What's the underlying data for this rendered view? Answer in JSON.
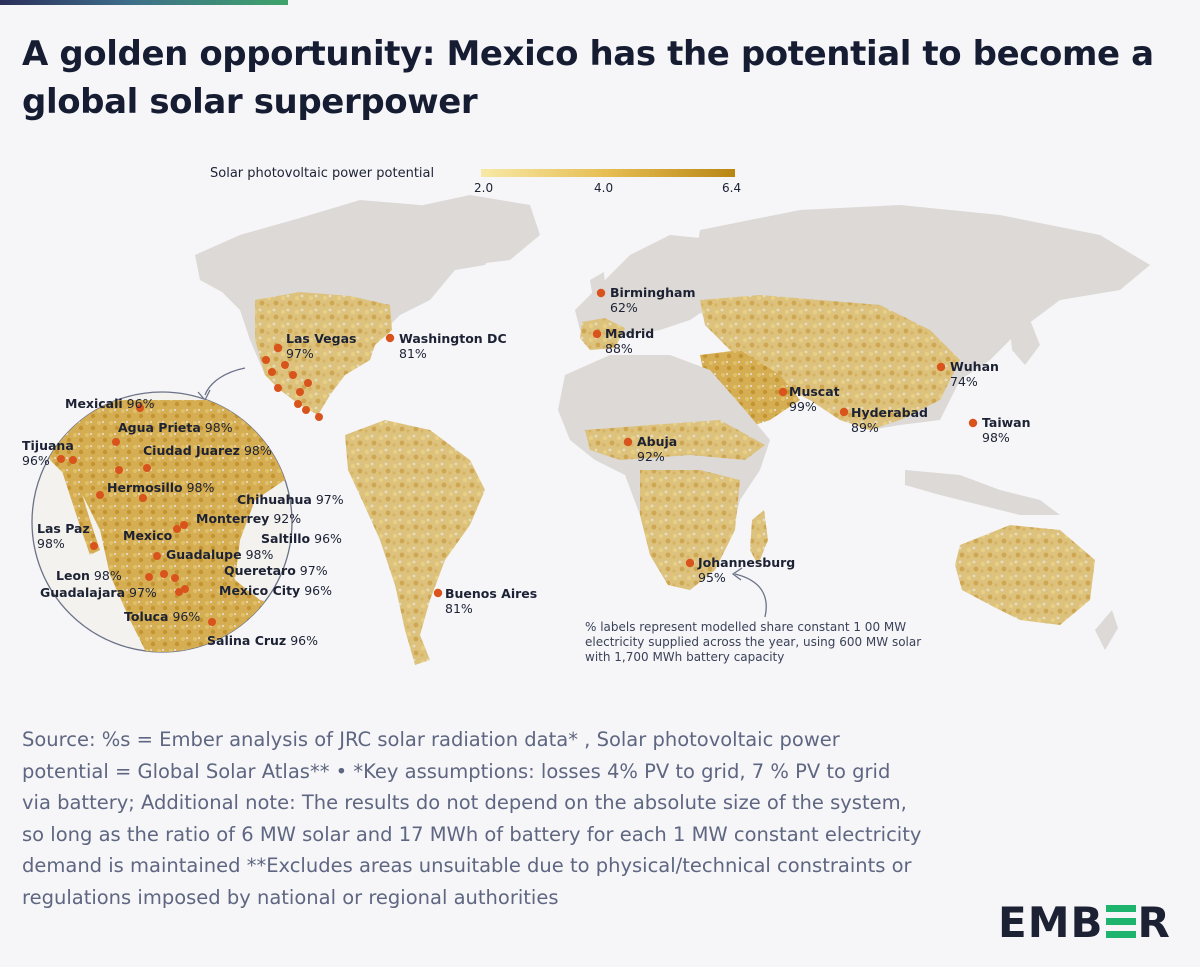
{
  "title": "A golden opportunity: Mexico has the potential to become a global solar superpower",
  "legend": {
    "label": "Solar photovoltaic power potential",
    "ticks": [
      "2.0",
      "4.0",
      "6.4"
    ],
    "color_low": "#f7e9a6",
    "color_high": "#b98612"
  },
  "cities": [
    {
      "name": "Las Vegas",
      "pct": "97%"
    },
    {
      "name": "Washington DC",
      "pct": "81%"
    },
    {
      "name": "Birmingham",
      "pct": "62%"
    },
    {
      "name": "Madrid",
      "pct": "88%"
    },
    {
      "name": "Wuhan",
      "pct": "74%"
    },
    {
      "name": "Muscat",
      "pct": "99%"
    },
    {
      "name": "Hyderabad",
      "pct": "89%"
    },
    {
      "name": "Taiwan",
      "pct": "98%"
    },
    {
      "name": "Abuja",
      "pct": "92%"
    },
    {
      "name": "Johannesburg",
      "pct": "95%"
    },
    {
      "name": "Buenos Aires",
      "pct": "81%"
    }
  ],
  "inset_cities": [
    {
      "name": "Mexicali",
      "pct": "96%"
    },
    {
      "name": "Agua Prieta",
      "pct": "98%"
    },
    {
      "name": "Tijuana",
      "pct": "96%"
    },
    {
      "name": "Ciudad Juarez",
      "pct": "98%"
    },
    {
      "name": "Hermosillo",
      "pct": "98%"
    },
    {
      "name": "Chihuahua",
      "pct": "97%"
    },
    {
      "name": "Las Paz",
      "pct": "98%"
    },
    {
      "name": "Monterrey",
      "pct": "92%"
    },
    {
      "name": "Mexico",
      "pct": ""
    },
    {
      "name": "Saltillo",
      "pct": "96%"
    },
    {
      "name": "Guadalupe",
      "pct": "98%"
    },
    {
      "name": "Leon",
      "pct": "98%"
    },
    {
      "name": "Queretaro",
      "pct": "97%"
    },
    {
      "name": "Guadalajara",
      "pct": "97%"
    },
    {
      "name": "Mexico City",
      "pct": "96%"
    },
    {
      "name": "Toluca",
      "pct": "96%"
    },
    {
      "name": "Salina Cruz",
      "pct": "96%"
    }
  ],
  "note": "% labels represent modelled share constant 1 00 MW electricity supplied across the year, using 600 MW solar with 1,700 MWh battery capacity",
  "source": "Source: %s = Ember analysis of JRC solar radiation data* , Solar photovoltaic power potential = Global Solar Atlas** • *Key assumptions: losses 4% PV to grid, 7 % PV to grid via battery; Additional note: The results do not depend on the absolute size of the system, so long as the ratio of 6 MW solar and 17 MWh of battery for each 1 MW constant electricity demand is maintained **Excludes areas unsuitable due to physical/technical constraints or regulations imposed by national or regional authorities",
  "logo": {
    "left": "EMB",
    "right": "R",
    "accent": "#1fb46e"
  },
  "colors": {
    "land": "#dedbd8",
    "dot": "#d9531c",
    "title": "#161d33"
  }
}
